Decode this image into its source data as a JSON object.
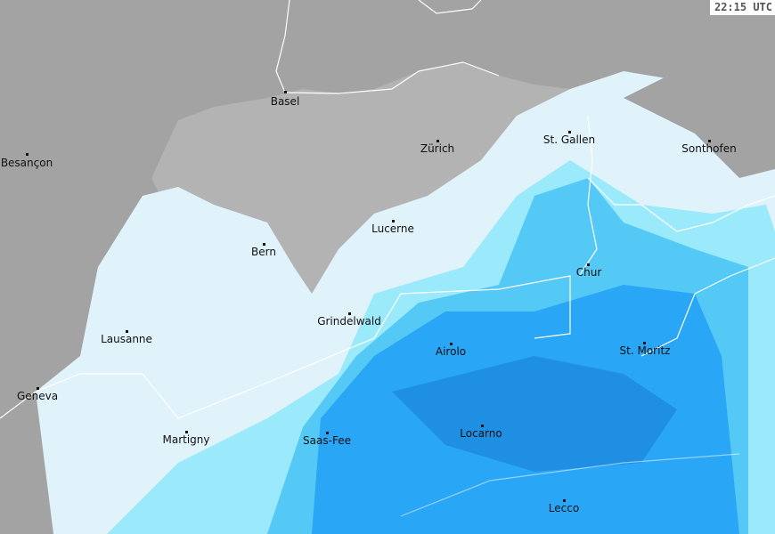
{
  "timestamp": "22:15 UTC",
  "colors": {
    "outside_land": "#a3a3a3",
    "swiss_land": "#b3b3b3",
    "precip_very_light": "#e0f3fb",
    "precip_light": "#9beafc",
    "precip_moderate": "#55c9f6",
    "precip_heavy": "#2aa6f6",
    "precip_very_heavy": "#1f8fe4"
  },
  "cities": [
    "Basel",
    "Zürich",
    "St. Gallen",
    "Sonthofen",
    "Besançon",
    "Lucerne",
    "Bern",
    "Chur",
    "Grindelwald",
    "Lausanne",
    "Airolo",
    "St. Moritz",
    "Geneva",
    "Martigny",
    "Saas-Fee",
    "Locarno",
    "Lecco"
  ]
}
